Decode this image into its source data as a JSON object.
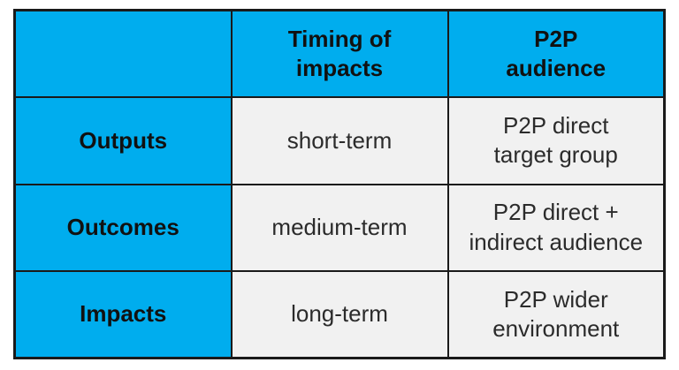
{
  "figure": {
    "type": "table-figure",
    "accent_color": "#00ADEE",
    "body_cell_color": "#F1F1F1",
    "border_color": "#1A1A1A",
    "header": {
      "corner": "",
      "timing": "Timing of\nimpacts",
      "audience": "P2P\naudience"
    },
    "rows": [
      {
        "label": "Outputs",
        "timing": "short-term",
        "audience": "P2P direct\ntarget group"
      },
      {
        "label": "Outcomes",
        "timing": "medium-term",
        "audience": "P2P direct +\nindirect audience"
      },
      {
        "label": "Impacts",
        "timing": "long-term",
        "audience": "P2P wider\nenvironment"
      }
    ]
  },
  "chart_data": {
    "type": "table",
    "title": "",
    "columns": [
      "",
      "Timing of impacts",
      "P2P audience"
    ],
    "rows": [
      [
        "Outputs",
        "short-term",
        "P2P direct target group"
      ],
      [
        "Outcomes",
        "medium-term",
        "P2P direct + indirect audience"
      ],
      [
        "Impacts",
        "long-term",
        "P2P wider environment"
      ]
    ],
    "layout": {
      "header_row_fill": "#00ADEE",
      "header_column_fill": "#00ADEE",
      "body_fill": "#F1F1F1",
      "grid": "on"
    }
  }
}
